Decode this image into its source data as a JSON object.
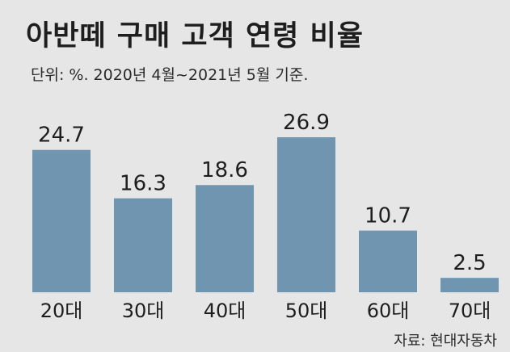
{
  "chart_data": {
    "type": "bar",
    "title": "아반떼 구매 고객 연령 비율",
    "subtitle": "단위: %. 2020년 4월~2021년 5월 기준.",
    "source": "자료: 현대자동차",
    "categories": [
      "20대",
      "30대",
      "40대",
      "50대",
      "60대",
      "70대"
    ],
    "values": [
      24.7,
      16.3,
      18.6,
      26.9,
      10.7,
      2.5
    ],
    "value_labels": [
      "24.7",
      "16.3",
      "18.6",
      "26.9",
      "10.7",
      "2.5"
    ],
    "ylim": [
      0,
      26.9
    ],
    "grid": false,
    "bar_color": "#6f95b0",
    "background_color": "#e6e6e6"
  }
}
